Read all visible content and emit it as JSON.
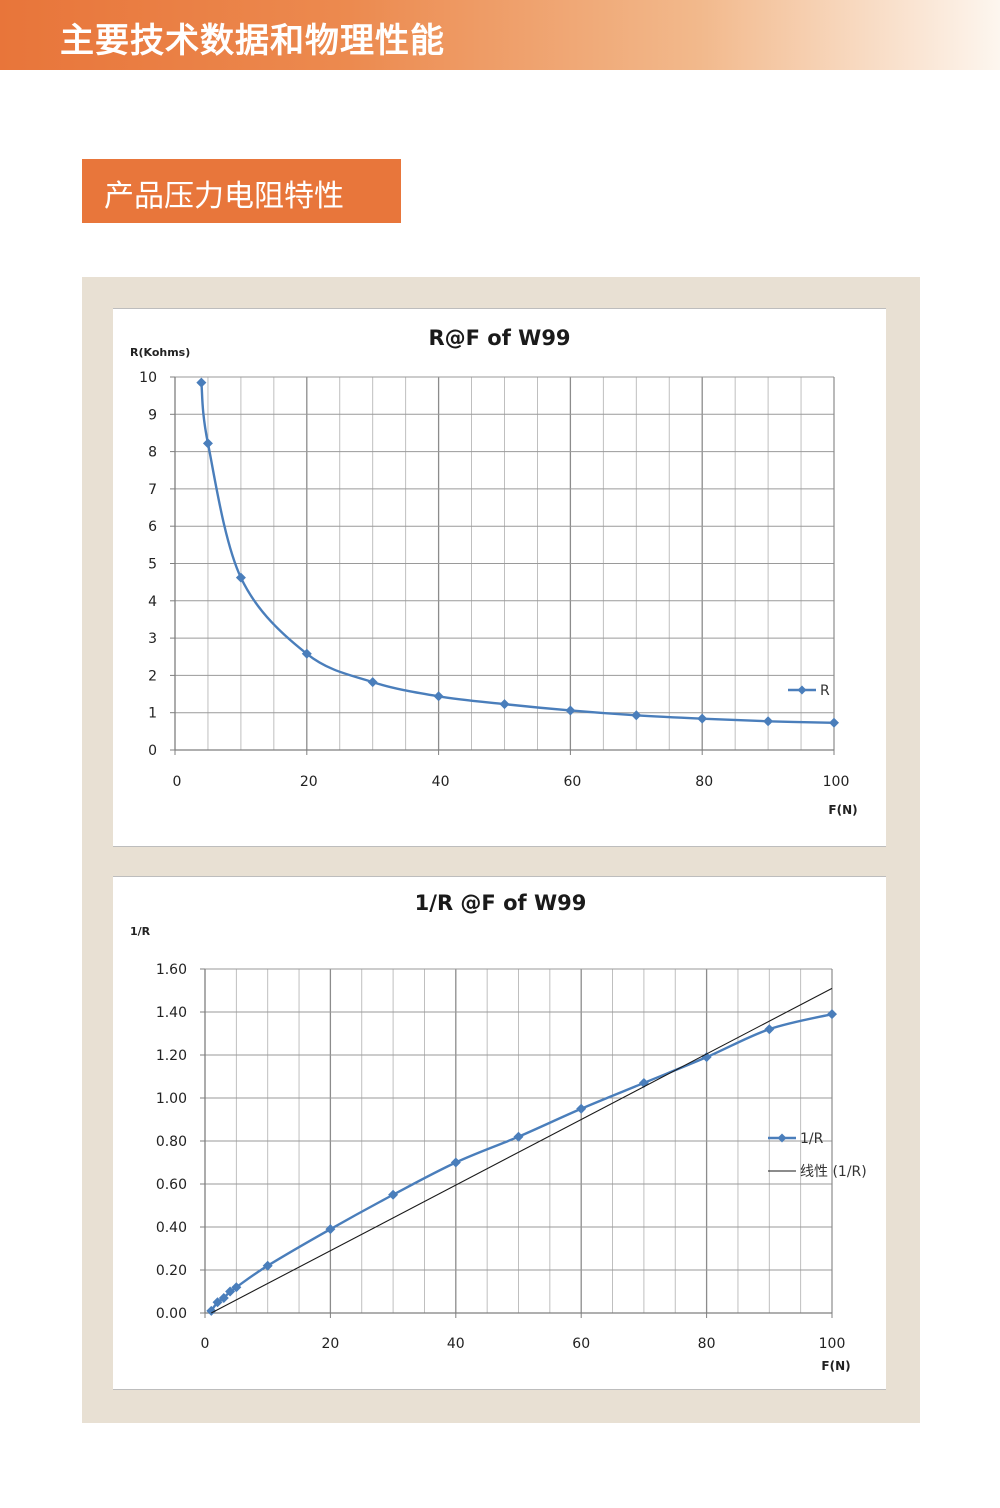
{
  "header": {
    "title": "主要技术数据和物理性能"
  },
  "section": {
    "label": "产品压力电阻特性"
  },
  "colors": {
    "accent": "#e8763b",
    "panel": "#e8e0d3",
    "series": "#4a7ebb",
    "trend": "#1a1a1a",
    "grid": "#a6a6a6"
  },
  "chart_data": [
    {
      "type": "line",
      "title": "R@F of  W99",
      "xlabel": "F(N)",
      "ylabel": "R(Kohms)",
      "xlim": [
        0,
        100
      ],
      "ylim": [
        0,
        10
      ],
      "x_ticks": [
        0,
        20,
        40,
        60,
        80,
        100
      ],
      "x_tick_labels": [
        "0",
        "20",
        "40",
        "60",
        "80",
        "100"
      ],
      "y_ticks": [
        0,
        1,
        2,
        3,
        4,
        5,
        6,
        7,
        8,
        9,
        10
      ],
      "y_tick_labels": [
        "0",
        "1",
        "2",
        "3",
        "4",
        "5",
        "6",
        "7",
        "8",
        "9",
        "10"
      ],
      "grid": true,
      "legend": "right",
      "series": [
        {
          "name": "R",
          "x": [
            4,
            5,
            10,
            20,
            30,
            40,
            50,
            60,
            70,
            80,
            90,
            100
          ],
          "values": [
            9.85,
            8.22,
            4.62,
            2.58,
            1.82,
            1.44,
            1.23,
            1.06,
            0.93,
            0.84,
            0.77,
            0.73
          ]
        }
      ]
    },
    {
      "type": "line",
      "title": "1/R @F of  W99",
      "xlabel": "F(N)",
      "ylabel": "1/R",
      "xlim": [
        0,
        100
      ],
      "ylim": [
        0,
        1.6
      ],
      "x_ticks": [
        0,
        20,
        40,
        60,
        80,
        100
      ],
      "x_tick_labels": [
        "0",
        "20",
        "40",
        "60",
        "80",
        "100"
      ],
      "y_ticks": [
        0,
        0.2,
        0.4,
        0.6,
        0.8,
        1.0,
        1.2,
        1.4,
        1.6
      ],
      "y_tick_labels": [
        "0.00",
        "0.20",
        "0.40",
        "0.60",
        "0.80",
        "1.00",
        "1.20",
        "1.40",
        "1.60"
      ],
      "grid": true,
      "legend": "right",
      "series": [
        {
          "name": "1/R",
          "x": [
            1,
            2,
            3,
            4,
            5,
            10,
            20,
            30,
            40,
            50,
            60,
            70,
            80,
            90,
            100
          ],
          "values": [
            0.01,
            0.05,
            0.07,
            0.1,
            0.12,
            0.22,
            0.39,
            0.55,
            0.7,
            0.82,
            0.95,
            1.07,
            1.19,
            1.32,
            1.39
          ]
        },
        {
          "name": "线性 (1/R)",
          "trendline": true,
          "x": [
            1,
            100
          ],
          "values": [
            0.0,
            1.51
          ]
        }
      ]
    }
  ]
}
